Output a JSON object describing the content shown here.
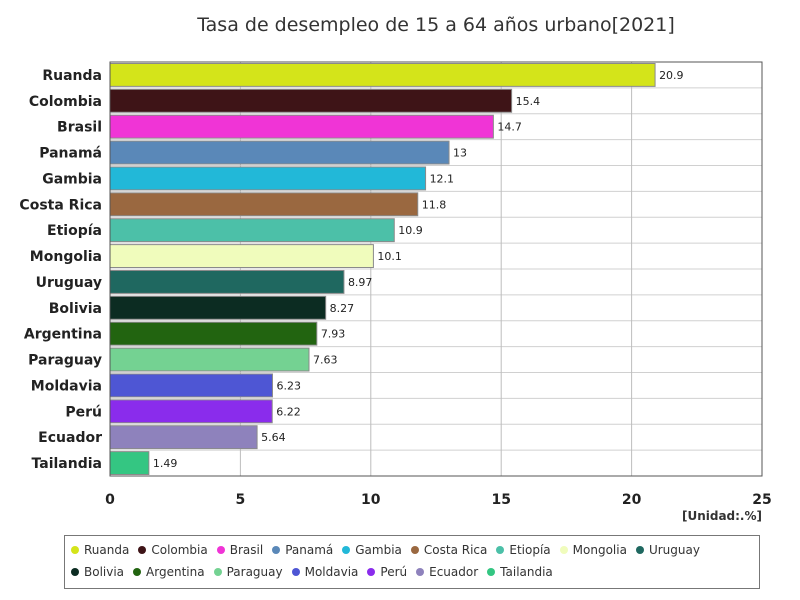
{
  "chart_data": {
    "type": "bar",
    "orientation": "horizontal",
    "title": "Tasa de desempleo de 15 a 64 años urbano[2021]",
    "unit_label": "[Unidad:.%]",
    "xlim": [
      0,
      25
    ],
    "x_ticks": [
      0,
      5,
      10,
      15,
      20,
      25
    ],
    "grid": true,
    "legend_position": "bottom",
    "categories": [
      "Ruanda",
      "Colombia",
      "Brasil",
      "Panamá",
      "Gambia",
      "Costa Rica",
      "Etiopía",
      "Mongolia",
      "Uruguay",
      "Bolivia",
      "Argentina",
      "Paraguay",
      "Moldavia",
      "Perú",
      "Ecuador",
      "Tailandia"
    ],
    "values": [
      20.9,
      15.4,
      14.7,
      13,
      12.1,
      11.8,
      10.9,
      10.1,
      8.97,
      8.27,
      7.93,
      7.63,
      6.23,
      6.22,
      5.64,
      1.49
    ],
    "value_labels": [
      "20.9",
      "15.4",
      "14.7",
      "13",
      "12.1",
      "11.8",
      "10.9",
      "10.1",
      "8.97",
      "8.27",
      "7.93",
      "7.63",
      "6.23",
      "6.22",
      "5.64",
      "1.49"
    ],
    "colors": [
      "#d4e41a",
      "#3e1417",
      "#f034d6",
      "#5a88b8",
      "#22b8d8",
      "#9a6840",
      "#4cc0a8",
      "#f0fcbc",
      "#1f6860",
      "#0c2c22",
      "#226410",
      "#74d292",
      "#4e56d4",
      "#8a2cec",
      "#8e82bc",
      "#34c682"
    ]
  }
}
